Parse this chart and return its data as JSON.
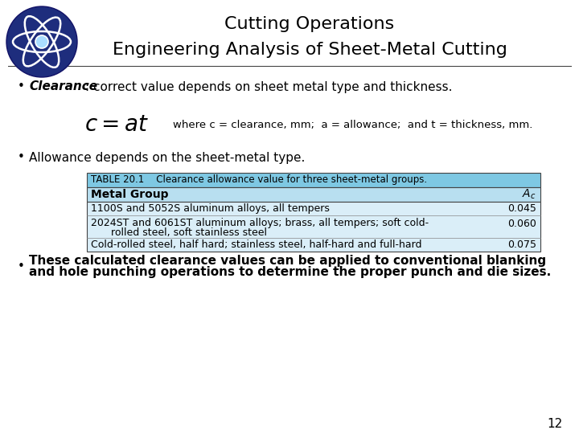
{
  "title_line1": "Cutting Operations",
  "title_line2": "Engineering Analysis of Sheet-Metal Cutting",
  "bg_color": "#ffffff",
  "logo_color": "#1e2d7d",
  "bullet1_bold": "Clearance",
  "bullet1_rest": ": correct value depends on sheet metal type and thickness.",
  "formula_desc": "where c = clearance, mm;  a = allowance;  and t = thickness, mm.",
  "bullet2": "Allowance depends on the sheet-metal type.",
  "table_title_bg": "#7ec8e3",
  "table_header_bg": "#b8dff0",
  "table_body_bg": "#daeef8",
  "table_header_text": "TABLE 20.1    Clearance allowance value for three sheet-metal groups.",
  "col_header_left": "Metal Group",
  "col_header_right": "Ac",
  "table_row1": [
    "1100S and 5052S aluminum alloys, all tempers",
    "0.045"
  ],
  "table_row2a": "2024ST and 6061ST aluminum alloys; brass, all tempers; soft cold-",
  "table_row2b": "    rolled steel, soft stainless steel",
  "table_row2c": "0.060",
  "table_row3": [
    "Cold-rolled steel, half hard; stainless steel, half-hard and full-hard",
    "0.075"
  ],
  "bullet3_line1": "These calculated clearance values can be applied to conventional blanking",
  "bullet3_line2": "and hole punching operations to determine the proper punch and die sizes.",
  "page_number": "12"
}
